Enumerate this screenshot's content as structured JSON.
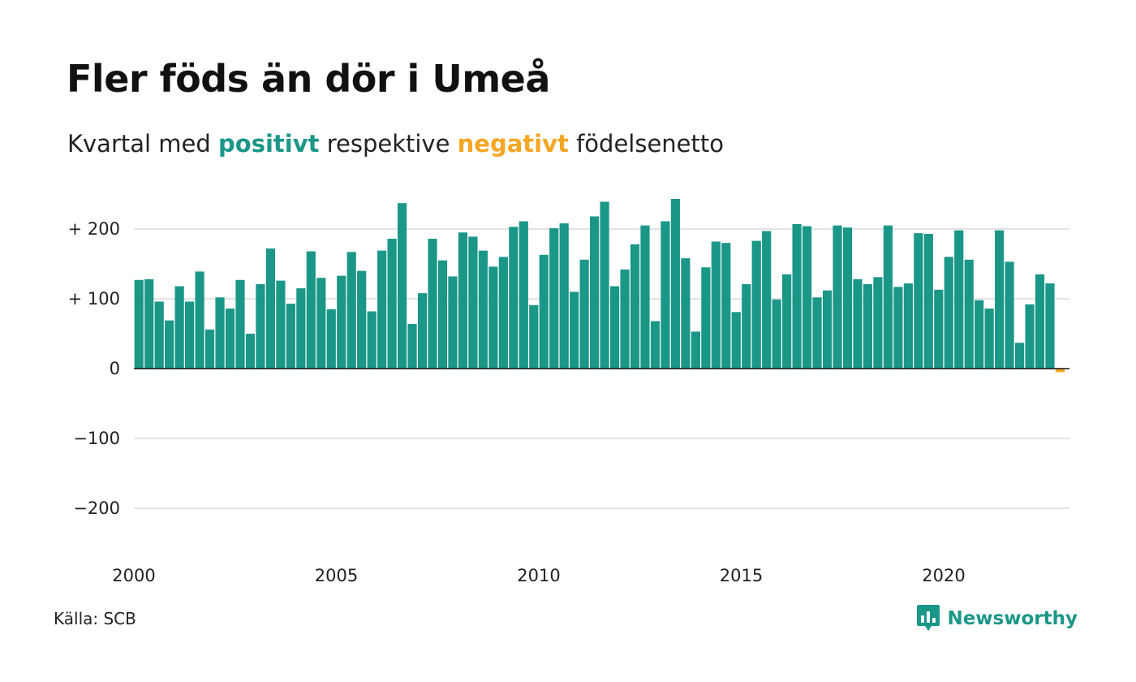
{
  "title": "Fler föds än dör i Umeå",
  "subtitle": {
    "part1": "Kvartal med ",
    "positive": "positivt",
    "part2": " respektive ",
    "negative": "negativt",
    "part3": " födelsenetto"
  },
  "colors": {
    "positive": "#1b9788",
    "negative": "#f5a623",
    "grid": "#e3e3e3",
    "zero_line": "#111111",
    "brand": "#1b9788"
  },
  "source": "Källa: SCB",
  "brand": {
    "name": "Newsworthy",
    "icon": "newsworthy-logo-icon"
  },
  "chart_data": {
    "type": "bar",
    "x_start": "2000-Q1",
    "x_step": "quarter",
    "xlim_years": [
      2000,
      2023
    ],
    "xticks": [
      2000,
      2005,
      2010,
      2015,
      2020
    ],
    "xtick_labels": [
      "2000",
      "2005",
      "2010",
      "2015",
      "2020"
    ],
    "ylim": [
      -260,
      250
    ],
    "yticks": [
      -200,
      -100,
      0,
      100,
      200
    ],
    "ytick_labels": [
      "−200",
      "−100",
      "0",
      "+ 100",
      "+ 200"
    ],
    "grid": true,
    "values": [
      127,
      128,
      96,
      69,
      118,
      96,
      139,
      56,
      102,
      86,
      127,
      50,
      121,
      172,
      126,
      93,
      115,
      168,
      130,
      85,
      133,
      167,
      140,
      82,
      169,
      186,
      237,
      64,
      108,
      186,
      155,
      132,
      195,
      189,
      169,
      146,
      160,
      203,
      211,
      91,
      163,
      201,
      208,
      110,
      156,
      218,
      239,
      118,
      142,
      178,
      205,
      68,
      211,
      243,
      158,
      53,
      145,
      182,
      180,
      81,
      121,
      183,
      197,
      99,
      135,
      207,
      204,
      102,
      112,
      205,
      202,
      128,
      121,
      131,
      205,
      117,
      122,
      194,
      193,
      113,
      160,
      198,
      156,
      98,
      86,
      198,
      153,
      37,
      92,
      135,
      122,
      -5
    ]
  }
}
